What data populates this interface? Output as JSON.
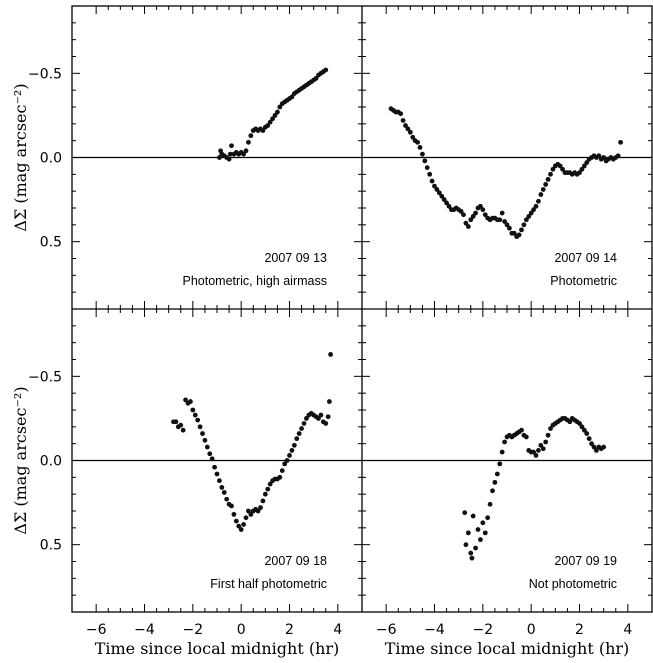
{
  "chart_data": [
    {
      "type": "scatter",
      "panel": "top-left",
      "date": "2007 09 13",
      "note": "Photometric, high airmass",
      "xlim": [
        -7,
        5
      ],
      "ylim": [
        0.9,
        -0.9
      ],
      "ylabel": "ΔΣ (mag arcsec⁻²)",
      "xticks": [],
      "yticks": [
        "−0.5",
        "0.0",
        "0.5"
      ],
      "points": [
        [
          -0.9,
          0.0
        ],
        [
          -0.85,
          -0.04
        ],
        [
          -0.8,
          -0.02
        ],
        [
          -0.7,
          -0.01
        ],
        [
          -0.6,
          0.0
        ],
        [
          -0.5,
          0.01
        ],
        [
          -0.45,
          -0.02
        ],
        [
          -0.4,
          -0.07
        ],
        [
          -0.3,
          -0.02
        ],
        [
          -0.2,
          -0.03
        ],
        [
          -0.1,
          -0.02
        ],
        [
          0.0,
          -0.03
        ],
        [
          0.1,
          -0.02
        ],
        [
          0.2,
          -0.04
        ],
        [
          0.3,
          -0.09
        ],
        [
          0.4,
          -0.13
        ],
        [
          0.5,
          -0.16
        ],
        [
          0.6,
          -0.17
        ],
        [
          0.7,
          -0.16
        ],
        [
          0.8,
          -0.17
        ],
        [
          0.9,
          -0.16
        ],
        [
          1.0,
          -0.18
        ],
        [
          1.1,
          -0.19
        ],
        [
          1.2,
          -0.21
        ],
        [
          1.3,
          -0.23
        ],
        [
          1.4,
          -0.25
        ],
        [
          1.5,
          -0.27
        ],
        [
          1.6,
          -0.3
        ],
        [
          1.7,
          -0.32
        ],
        [
          1.8,
          -0.33
        ],
        [
          1.9,
          -0.34
        ],
        [
          2.0,
          -0.35
        ],
        [
          2.1,
          -0.36
        ],
        [
          2.2,
          -0.38
        ],
        [
          2.3,
          -0.39
        ],
        [
          2.4,
          -0.4
        ],
        [
          2.5,
          -0.41
        ],
        [
          2.6,
          -0.42
        ],
        [
          2.7,
          -0.43
        ],
        [
          2.8,
          -0.44
        ],
        [
          2.9,
          -0.45
        ],
        [
          3.0,
          -0.46
        ],
        [
          3.1,
          -0.47
        ],
        [
          3.2,
          -0.49
        ],
        [
          3.3,
          -0.5
        ],
        [
          3.4,
          -0.51
        ],
        [
          3.5,
          -0.52
        ]
      ]
    },
    {
      "type": "scatter",
      "panel": "top-right",
      "date": "2007 09 14",
      "note": "Photometric",
      "xlim": [
        -7,
        5
      ],
      "ylim": [
        0.9,
        -0.9
      ],
      "xticks": [],
      "yticks": [],
      "points": [
        [
          -5.8,
          -0.29
        ],
        [
          -5.7,
          -0.28
        ],
        [
          -5.6,
          -0.27
        ],
        [
          -5.5,
          -0.27
        ],
        [
          -5.4,
          -0.26
        ],
        [
          -5.3,
          -0.22
        ],
        [
          -5.2,
          -0.19
        ],
        [
          -5.1,
          -0.17
        ],
        [
          -5.0,
          -0.15
        ],
        [
          -4.9,
          -0.12
        ],
        [
          -4.8,
          -0.1
        ],
        [
          -4.7,
          -0.09
        ],
        [
          -4.6,
          -0.06
        ],
        [
          -4.5,
          -0.02
        ],
        [
          -4.4,
          0.02
        ],
        [
          -4.3,
          0.06
        ],
        [
          -4.2,
          0.1
        ],
        [
          -4.1,
          0.14
        ],
        [
          -4.0,
          0.17
        ],
        [
          -3.9,
          0.19
        ],
        [
          -3.8,
          0.21
        ],
        [
          -3.7,
          0.23
        ],
        [
          -3.6,
          0.25
        ],
        [
          -3.5,
          0.27
        ],
        [
          -3.4,
          0.29
        ],
        [
          -3.3,
          0.31
        ],
        [
          -3.2,
          0.31
        ],
        [
          -3.1,
          0.3
        ],
        [
          -3.0,
          0.31
        ],
        [
          -2.9,
          0.32
        ],
        [
          -2.8,
          0.34
        ],
        [
          -2.7,
          0.39
        ],
        [
          -2.6,
          0.41
        ],
        [
          -2.5,
          0.37
        ],
        [
          -2.4,
          0.35
        ],
        [
          -2.3,
          0.33
        ],
        [
          -2.2,
          0.3
        ],
        [
          -2.1,
          0.29
        ],
        [
          -2.0,
          0.31
        ],
        [
          -1.9,
          0.34
        ],
        [
          -1.8,
          0.36
        ],
        [
          -1.7,
          0.37
        ],
        [
          -1.6,
          0.36
        ],
        [
          -1.5,
          0.36
        ],
        [
          -1.4,
          0.37
        ],
        [
          -1.3,
          0.37
        ],
        [
          -1.2,
          0.33
        ],
        [
          -1.1,
          0.38
        ],
        [
          -1.0,
          0.4
        ],
        [
          -0.9,
          0.42
        ],
        [
          -0.8,
          0.45
        ],
        [
          -0.7,
          0.45
        ],
        [
          -0.6,
          0.47
        ],
        [
          -0.5,
          0.46
        ],
        [
          -0.4,
          0.43
        ],
        [
          -0.3,
          0.4
        ],
        [
          -0.2,
          0.37
        ],
        [
          -0.1,
          0.35
        ],
        [
          0.0,
          0.33
        ],
        [
          0.1,
          0.31
        ],
        [
          0.2,
          0.29
        ],
        [
          0.3,
          0.26
        ],
        [
          0.4,
          0.22
        ],
        [
          0.5,
          0.19
        ],
        [
          0.6,
          0.16
        ],
        [
          0.7,
          0.13
        ],
        [
          0.8,
          0.1
        ],
        [
          0.9,
          0.07
        ],
        [
          1.0,
          0.05
        ],
        [
          1.1,
          0.04
        ],
        [
          1.2,
          0.05
        ],
        [
          1.3,
          0.07
        ],
        [
          1.4,
          0.09
        ],
        [
          1.5,
          0.09
        ],
        [
          1.6,
          0.09
        ],
        [
          1.7,
          0.1
        ],
        [
          1.8,
          0.09
        ],
        [
          1.9,
          0.1
        ],
        [
          2.0,
          0.09
        ],
        [
          2.1,
          0.07
        ],
        [
          2.2,
          0.05
        ],
        [
          2.3,
          0.03
        ],
        [
          2.4,
          0.01
        ],
        [
          2.5,
          0.0
        ],
        [
          2.6,
          -0.01
        ],
        [
          2.7,
          0.0
        ],
        [
          2.8,
          -0.01
        ],
        [
          2.9,
          0.01
        ],
        [
          3.0,
          0.0
        ],
        [
          3.1,
          0.02
        ],
        [
          3.2,
          0.01
        ],
        [
          3.3,
          0.0
        ],
        [
          3.4,
          0.01
        ],
        [
          3.5,
          0.0
        ],
        [
          3.6,
          -0.01
        ],
        [
          3.7,
          -0.09
        ]
      ]
    },
    {
      "type": "scatter",
      "panel": "bottom-left",
      "date": "2007 09 18",
      "note": "First half photometric",
      "xlim": [
        -7,
        5
      ],
      "ylim": [
        0.9,
        -0.9
      ],
      "xlabel": "Time since local midnight (hr)",
      "ylabel": "ΔΣ (mag arcsec⁻²)",
      "xticks": [
        "−6",
        "−4",
        "−2",
        "0",
        "2",
        "4"
      ],
      "yticks": [
        "−0.5",
        "0.0",
        "0.5"
      ],
      "points": [
        [
          -2.8,
          -0.23
        ],
        [
          -2.7,
          -0.23
        ],
        [
          -2.6,
          -0.2
        ],
        [
          -2.5,
          -0.21
        ],
        [
          -2.4,
          -0.18
        ],
        [
          -2.3,
          -0.36
        ],
        [
          -2.2,
          -0.34
        ],
        [
          -2.1,
          -0.35
        ],
        [
          -2.0,
          -0.3
        ],
        [
          -1.9,
          -0.27
        ],
        [
          -1.8,
          -0.24
        ],
        [
          -1.7,
          -0.2
        ],
        [
          -1.6,
          -0.16
        ],
        [
          -1.5,
          -0.12
        ],
        [
          -1.4,
          -0.08
        ],
        [
          -1.3,
          -0.04
        ],
        [
          -1.2,
          -0.01
        ],
        [
          -1.1,
          0.04
        ],
        [
          -1.0,
          0.08
        ],
        [
          -0.9,
          0.12
        ],
        [
          -0.8,
          0.16
        ],
        [
          -0.7,
          0.19
        ],
        [
          -0.6,
          0.23
        ],
        [
          -0.5,
          0.26
        ],
        [
          -0.4,
          0.27
        ],
        [
          -0.3,
          0.32
        ],
        [
          -0.2,
          0.36
        ],
        [
          -0.1,
          0.39
        ],
        [
          0.0,
          0.41
        ],
        [
          0.1,
          0.38
        ],
        [
          0.2,
          0.34
        ],
        [
          0.3,
          0.3
        ],
        [
          0.4,
          0.32
        ],
        [
          0.5,
          0.3
        ],
        [
          0.6,
          0.29
        ],
        [
          0.7,
          0.3
        ],
        [
          0.8,
          0.28
        ],
        [
          0.9,
          0.24
        ],
        [
          1.0,
          0.2
        ],
        [
          1.1,
          0.17
        ],
        [
          1.2,
          0.14
        ],
        [
          1.3,
          0.12
        ],
        [
          1.4,
          0.11
        ],
        [
          1.5,
          0.11
        ],
        [
          1.6,
          0.1
        ],
        [
          1.7,
          0.06
        ],
        [
          1.8,
          0.02
        ],
        [
          1.9,
          0.0
        ],
        [
          2.0,
          -0.03
        ],
        [
          2.1,
          -0.06
        ],
        [
          2.2,
          -0.09
        ],
        [
          2.3,
          -0.13
        ],
        [
          2.4,
          -0.16
        ],
        [
          2.5,
          -0.19
        ],
        [
          2.6,
          -0.22
        ],
        [
          2.7,
          -0.25
        ],
        [
          2.8,
          -0.27
        ],
        [
          2.9,
          -0.28
        ],
        [
          3.0,
          -0.27
        ],
        [
          3.1,
          -0.26
        ],
        [
          3.2,
          -0.25
        ],
        [
          3.3,
          -0.27
        ],
        [
          3.4,
          -0.23
        ],
        [
          3.5,
          -0.22
        ],
        [
          3.6,
          -0.26
        ],
        [
          3.65,
          -0.35
        ],
        [
          3.7,
          -0.63
        ]
      ]
    },
    {
      "type": "scatter",
      "panel": "bottom-right",
      "date": "2007 09 19",
      "note": "Not photometric",
      "xlim": [
        -7,
        5
      ],
      "ylim": [
        0.9,
        -0.9
      ],
      "xlabel": "Time since local midnight (hr)",
      "xticks": [
        "−6",
        "−4",
        "−2",
        "0",
        "2",
        "4"
      ],
      "yticks": [],
      "points": [
        [
          -2.75,
          0.31
        ],
        [
          -2.7,
          0.5
        ],
        [
          -2.6,
          0.43
        ],
        [
          -2.5,
          0.55
        ],
        [
          -2.45,
          0.58
        ],
        [
          -2.4,
          0.33
        ],
        [
          -2.3,
          0.52
        ],
        [
          -2.2,
          0.41
        ],
        [
          -2.1,
          0.47
        ],
        [
          -2.0,
          0.37
        ],
        [
          -1.9,
          0.43
        ],
        [
          -1.8,
          0.34
        ],
        [
          -1.7,
          0.26
        ],
        [
          -1.6,
          0.18
        ],
        [
          -1.5,
          0.13
        ],
        [
          -1.4,
          0.08
        ],
        [
          -1.3,
          0.02
        ],
        [
          -1.2,
          -0.05
        ],
        [
          -1.1,
          -0.11
        ],
        [
          -1.0,
          -0.14
        ],
        [
          -0.9,
          -0.15
        ],
        [
          -0.8,
          -0.14
        ],
        [
          -0.7,
          -0.15
        ],
        [
          -0.6,
          -0.16
        ],
        [
          -0.5,
          -0.17
        ],
        [
          -0.4,
          -0.18
        ],
        [
          -0.3,
          -0.15
        ],
        [
          -0.2,
          -0.14
        ],
        [
          -0.1,
          -0.06
        ],
        [
          0.0,
          -0.05
        ],
        [
          0.1,
          -0.05
        ],
        [
          0.2,
          -0.03
        ],
        [
          0.3,
          -0.06
        ],
        [
          0.4,
          -0.09
        ],
        [
          0.5,
          -0.07
        ],
        [
          0.6,
          -0.11
        ],
        [
          0.7,
          -0.15
        ],
        [
          0.8,
          -0.19
        ],
        [
          0.9,
          -0.21
        ],
        [
          1.0,
          -0.22
        ],
        [
          1.1,
          -0.23
        ],
        [
          1.2,
          -0.24
        ],
        [
          1.3,
          -0.25
        ],
        [
          1.4,
          -0.25
        ],
        [
          1.5,
          -0.24
        ],
        [
          1.6,
          -0.23
        ],
        [
          1.7,
          -0.25
        ],
        [
          1.8,
          -0.24
        ],
        [
          1.9,
          -0.23
        ],
        [
          2.0,
          -0.22
        ],
        [
          2.1,
          -0.2
        ],
        [
          2.2,
          -0.18
        ],
        [
          2.3,
          -0.16
        ],
        [
          2.4,
          -0.13
        ],
        [
          2.5,
          -0.1
        ],
        [
          2.6,
          -0.08
        ],
        [
          2.7,
          -0.06
        ],
        [
          2.8,
          -0.08
        ],
        [
          2.9,
          -0.07
        ],
        [
          3.0,
          -0.08
        ]
      ]
    }
  ]
}
